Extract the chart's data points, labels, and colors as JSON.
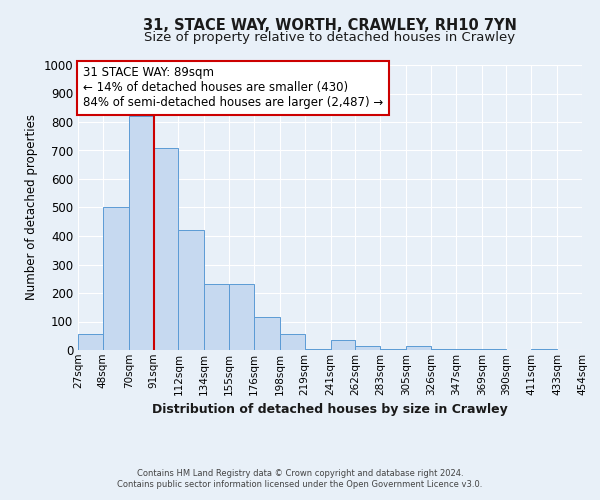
{
  "title1": "31, STACE WAY, WORTH, CRAWLEY, RH10 7YN",
  "title2": "Size of property relative to detached houses in Crawley",
  "xlabel": "Distribution of detached houses by size in Crawley",
  "ylabel": "Number of detached properties",
  "bin_labels": [
    "27sqm",
    "48sqm",
    "70sqm",
    "91sqm",
    "112sqm",
    "134sqm",
    "155sqm",
    "176sqm",
    "198sqm",
    "219sqm",
    "241sqm",
    "262sqm",
    "283sqm",
    "305sqm",
    "326sqm",
    "347sqm",
    "369sqm",
    "390sqm",
    "411sqm",
    "433sqm",
    "454sqm"
  ],
  "bar_values": [
    55,
    500,
    820,
    710,
    420,
    230,
    230,
    115,
    55,
    5,
    35,
    15,
    5,
    15,
    5,
    5,
    5,
    0,
    5,
    0,
    0
  ],
  "bin_edges": [
    27,
    48,
    70,
    91,
    112,
    134,
    155,
    176,
    198,
    219,
    241,
    262,
    283,
    305,
    326,
    347,
    369,
    390,
    411,
    433,
    454
  ],
  "bar_fill": "#c6d9f0",
  "bar_edge": "#5b9bd5",
  "vline_x": 91,
  "vline_color": "#cc0000",
  "ann_line1": "31 STACE WAY: 89sqm",
  "ann_line2": "← 14% of detached houses are smaller (430)",
  "ann_line3": "84% of semi-detached houses are larger (2,487) →",
  "ann_box_fc": "#ffffff",
  "ann_box_ec": "#cc0000",
  "bg_color": "#e8f0f8",
  "plot_bg": "#e8f0f8",
  "grid_color": "#ffffff",
  "footer1": "Contains HM Land Registry data © Crown copyright and database right 2024.",
  "footer2": "Contains public sector information licensed under the Open Government Licence v3.0.",
  "ylim": [
    0,
    1000
  ],
  "yticks": [
    0,
    100,
    200,
    300,
    400,
    500,
    600,
    700,
    800,
    900,
    1000
  ]
}
